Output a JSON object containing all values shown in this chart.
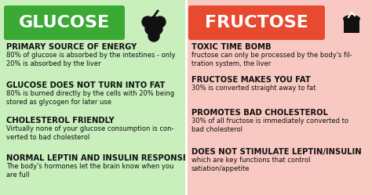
{
  "bg_left": "#c8efbc",
  "bg_right": "#f8c9c2",
  "header_left_bg": "#3aaa35",
  "header_right_bg": "#e84a2f",
  "header_left_text": "GLUCOSE",
  "header_right_text": "FRUCTOSE",
  "header_text_color": "#ffffff",
  "body_text_color": "#111111",
  "fig_width": 4.74,
  "fig_height": 2.49,
  "dpi": 100,
  "left_items": [
    {
      "title": "PRIMARY SOURCE OF ENERGY",
      "body": "80% of glucose is absorbed by the intestines - only\n20% is absorbed by the liver"
    },
    {
      "title": "GLUCOSE DOES NOT TURN INTO FAT",
      "body": "80% is burned directly by the cells with 20% being\nstored as glycogen for later use"
    },
    {
      "title": "CHOLESTEROL FRIENDLY",
      "body": "Virtually none of your glucose consumption is con-\nverted to bad cholesterol"
    },
    {
      "title": "NORMAL LEPTIN AND INSULIN RESPONSE",
      "body": "The body's hormones let the brain know when you\nare full"
    }
  ],
  "right_items": [
    {
      "title": "TOXIC TIME BOMB",
      "body": "fructose can only be processed by the body's fil-\ntration system, the liver"
    },
    {
      "title": "FRUCTOSE MAKES YOU FAT",
      "body": "30% is converted straight away to fat"
    },
    {
      "title": "PROMOTES BAD CHOLESTEROL",
      "body": "30% of all fructose is immediately converted to\nbad cholesterol"
    },
    {
      "title": "DOES NOT STIMULATE LEPTIN/INSULIN",
      "body": "which are key functions that control\nsatiation/appetite"
    }
  ]
}
